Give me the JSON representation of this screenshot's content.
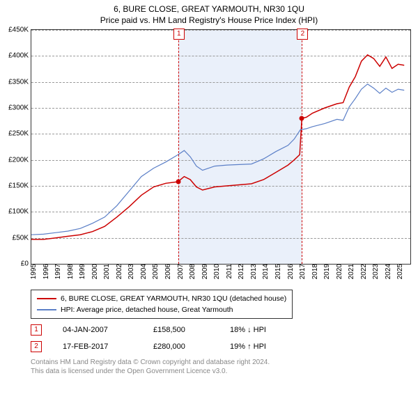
{
  "title": "6, BURE CLOSE, GREAT YARMOUTH, NR30 1QU",
  "subtitle": "Price paid vs. HM Land Registry's House Price Index (HPI)",
  "chart": {
    "type": "line",
    "background_color": "#ffffff",
    "border_color": "#333333",
    "grid_color": "#999999",
    "grid_dash": "3,2",
    "shaded_region": {
      "x_start": 2007.01,
      "x_end": 2017.13,
      "fill": "#eaf0fa"
    },
    "y": {
      "min": 0,
      "max": 450000,
      "step": 50000,
      "ticks": [
        "£0",
        "£50K",
        "£100K",
        "£150K",
        "£200K",
        "£250K",
        "£300K",
        "£350K",
        "£400K",
        "£450K"
      ]
    },
    "x": {
      "min": 1995,
      "max": 2026,
      "ticks": [
        1995,
        1996,
        1997,
        1998,
        1999,
        2000,
        2001,
        2002,
        2003,
        2004,
        2005,
        2006,
        2007,
        2008,
        2009,
        2010,
        2011,
        2012,
        2013,
        2014,
        2015,
        2016,
        2017,
        2018,
        2019,
        2020,
        2021,
        2022,
        2023,
        2024,
        2025
      ]
    },
    "series": [
      {
        "id": "price_paid",
        "label": "6, BURE CLOSE, GREAT YARMOUTH, NR30 1QU (detached house)",
        "color": "#cc0000",
        "line_width": 1.5,
        "points": [
          [
            1995,
            47000
          ],
          [
            1996,
            47000
          ],
          [
            1997,
            50000
          ],
          [
            1998,
            53000
          ],
          [
            1999,
            56000
          ],
          [
            2000,
            62000
          ],
          [
            2001,
            72000
          ],
          [
            2002,
            90000
          ],
          [
            2003,
            110000
          ],
          [
            2004,
            132000
          ],
          [
            2005,
            148000
          ],
          [
            2006,
            155000
          ],
          [
            2007,
            158000
          ],
          [
            2007.5,
            168000
          ],
          [
            2008,
            162000
          ],
          [
            2008.5,
            148000
          ],
          [
            2009,
            142000
          ],
          [
            2010,
            148000
          ],
          [
            2011,
            150000
          ],
          [
            2012,
            152000
          ],
          [
            2013,
            154000
          ],
          [
            2014,
            162000
          ],
          [
            2015,
            176000
          ],
          [
            2016,
            190000
          ],
          [
            2016.5,
            200000
          ],
          [
            2016.95,
            210000
          ],
          [
            2017.13,
            280000
          ],
          [
            2017.5,
            282000
          ],
          [
            2018,
            290000
          ],
          [
            2019,
            300000
          ],
          [
            2020,
            308000
          ],
          [
            2020.5,
            310000
          ],
          [
            2021,
            340000
          ],
          [
            2021.5,
            360000
          ],
          [
            2022,
            390000
          ],
          [
            2022.5,
            402000
          ],
          [
            2023,
            395000
          ],
          [
            2023.5,
            380000
          ],
          [
            2024,
            398000
          ],
          [
            2024.5,
            376000
          ],
          [
            2025,
            384000
          ],
          [
            2025.5,
            382000
          ]
        ]
      },
      {
        "id": "hpi",
        "label": "HPI: Average price, detached house, Great Yarmouth",
        "color": "#5b7fc7",
        "line_width": 1.2,
        "points": [
          [
            1995,
            56000
          ],
          [
            1996,
            57000
          ],
          [
            1997,
            60000
          ],
          [
            1998,
            63000
          ],
          [
            1999,
            68000
          ],
          [
            2000,
            78000
          ],
          [
            2001,
            90000
          ],
          [
            2002,
            112000
          ],
          [
            2003,
            140000
          ],
          [
            2004,
            168000
          ],
          [
            2005,
            184000
          ],
          [
            2006,
            196000
          ],
          [
            2007,
            210000
          ],
          [
            2007.5,
            218000
          ],
          [
            2008,
            206000
          ],
          [
            2008.5,
            188000
          ],
          [
            2009,
            180000
          ],
          [
            2010,
            188000
          ],
          [
            2011,
            190000
          ],
          [
            2012,
            191000
          ],
          [
            2013,
            192000
          ],
          [
            2014,
            202000
          ],
          [
            2015,
            216000
          ],
          [
            2016,
            228000
          ],
          [
            2016.5,
            240000
          ],
          [
            2017,
            258000
          ],
          [
            2017.5,
            260000
          ],
          [
            2018,
            264000
          ],
          [
            2019,
            270000
          ],
          [
            2020,
            278000
          ],
          [
            2020.5,
            276000
          ],
          [
            2021,
            302000
          ],
          [
            2021.5,
            318000
          ],
          [
            2022,
            336000
          ],
          [
            2022.5,
            346000
          ],
          [
            2023,
            338000
          ],
          [
            2023.5,
            328000
          ],
          [
            2024,
            338000
          ],
          [
            2024.5,
            330000
          ],
          [
            2025,
            336000
          ],
          [
            2025.5,
            334000
          ]
        ]
      }
    ],
    "markers": [
      {
        "n": "1",
        "x": 2007.01,
        "price_y": 158500
      },
      {
        "n": "2",
        "x": 2017.13,
        "price_y": 280000
      }
    ]
  },
  "legend": {
    "items": [
      {
        "color": "#cc0000",
        "label": "6, BURE CLOSE, GREAT YARMOUTH, NR30 1QU (detached house)"
      },
      {
        "color": "#5b7fc7",
        "label": "HPI: Average price, detached house, Great Yarmouth"
      }
    ]
  },
  "transactions": [
    {
      "n": "1",
      "date": "04-JAN-2007",
      "price": "£158,500",
      "diff": "18% ↓ HPI"
    },
    {
      "n": "2",
      "date": "17-FEB-2017",
      "price": "£280,000",
      "diff": "19% ↑ HPI"
    }
  ],
  "footer": {
    "line1": "Contains HM Land Registry data © Crown copyright and database right 2024.",
    "line2": "This data is licensed under the Open Government Licence v3.0."
  },
  "style": {
    "title_fontsize": 12,
    "axis_label_fontsize": 10,
    "legend_fontsize": 10.5,
    "footer_color": "#888888",
    "marker_color": "#cc0000"
  }
}
